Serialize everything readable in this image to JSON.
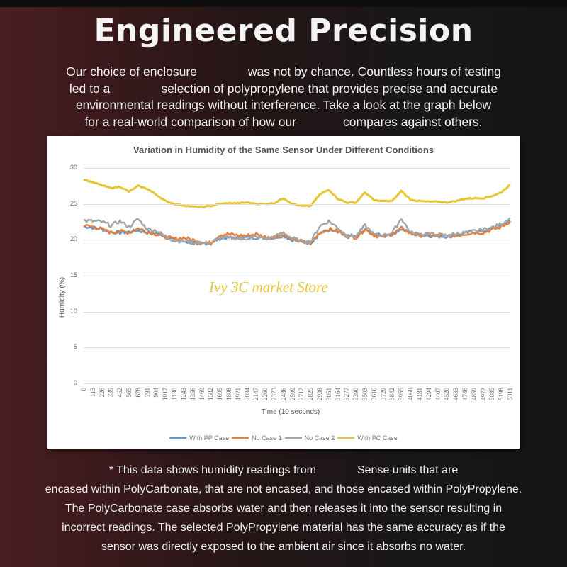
{
  "header": {
    "title": "Engineered Precision",
    "intro_lines": [
      [
        "Our choice of enclosure",
        "was not by chance. Countless hours of testing"
      ],
      [
        "led to a",
        "selection of polypropylene that provides precise and accurate"
      ],
      [
        "environmental readings without interference. Take a look at the graph below"
      ],
      [
        "for a real-world comparison of how our",
        "compares against others."
      ]
    ]
  },
  "watermark": "Ivy 3C market Store",
  "footnote": {
    "line1_a": "* This data shows humidity readings from",
    "line1_b": "Sense units that are",
    "line2": "encased within PolyCarbonate, that are not encased, and those encased within PolyPropylene.",
    "line3": "The PolyCarbonate case absorbs water and then releases it into the sensor resulting in",
    "line4": "incorrect readings. The selected PolyPropylene material has the same accuracy as if the",
    "line5": "sensor was directly exposed to the ambient air since it absorbs no water."
  },
  "chart_data": {
    "type": "line",
    "title": "Variation in Humidity of the Same Sensor Under Different Conditions",
    "xlabel": "Time (10 seconds)",
    "ylabel": "Humidity (%)",
    "ylim": [
      0,
      30
    ],
    "yticks": [
      "0",
      "5",
      "10",
      "15",
      "20",
      "25",
      "30"
    ],
    "grid": true,
    "legend_position": "bottom",
    "x": [
      0,
      113,
      226,
      339,
      452,
      565,
      678,
      791,
      904,
      1017,
      1130,
      1243,
      1356,
      1469,
      1582,
      1695,
      1808,
      1921,
      2034,
      2147,
      2260,
      2373,
      2486,
      2599,
      2712,
      2825,
      2938,
      3051,
      3164,
      3277,
      3390,
      3503,
      3616,
      3729,
      3842,
      3955,
      4068,
      4181,
      4294,
      4407,
      4520,
      4633,
      4746,
      4859,
      4972,
      5085,
      5198,
      5311
    ],
    "series": [
      {
        "name": "With PP Case",
        "color": "#5b9bd5",
        "values": [
          21.9,
          21.7,
          21.5,
          21.1,
          21.0,
          21.1,
          21.3,
          21.0,
          20.9,
          20.5,
          20.0,
          19.8,
          19.6,
          19.5,
          19.6,
          20.2,
          20.3,
          20.2,
          20.3,
          20.3,
          20.2,
          20.3,
          20.6,
          20.0,
          19.7,
          19.6,
          20.9,
          21.3,
          21.0,
          20.5,
          20.4,
          21.4,
          20.7,
          20.6,
          20.8,
          21.5,
          20.9,
          20.7,
          20.6,
          20.5,
          20.5,
          20.6,
          20.9,
          21.1,
          21.2,
          21.5,
          21.9,
          22.7
        ]
      },
      {
        "name": "No Case 1",
        "color": "#ed7d31",
        "values": [
          22.0,
          21.8,
          21.5,
          21.0,
          21.2,
          21.0,
          21.6,
          21.1,
          20.8,
          20.4,
          20.1,
          20.3,
          20.0,
          19.7,
          19.5,
          20.7,
          20.8,
          20.6,
          20.6,
          20.8,
          20.4,
          20.4,
          20.7,
          20.0,
          19.8,
          19.5,
          21.0,
          21.5,
          21.2,
          20.5,
          20.3,
          21.5,
          20.6,
          20.4,
          20.8,
          21.6,
          20.9,
          20.6,
          20.7,
          20.5,
          20.5,
          20.6,
          20.8,
          21.0,
          21.0,
          21.4,
          21.8,
          22.6
        ]
      },
      {
        "name": "No Case 2",
        "color": "#a5a5a5",
        "values": [
          22.7,
          22.6,
          22.5,
          22.0,
          22.6,
          21.8,
          22.9,
          21.5,
          21.3,
          20.5,
          19.9,
          19.8,
          19.6,
          19.5,
          19.6,
          20.3,
          20.3,
          20.2,
          20.2,
          20.4,
          20.2,
          20.4,
          21.0,
          20.2,
          19.8,
          19.7,
          21.9,
          22.6,
          21.7,
          20.6,
          20.5,
          22.0,
          20.7,
          20.6,
          21.0,
          23.0,
          21.0,
          20.8,
          20.8,
          20.7,
          20.6,
          20.8,
          21.0,
          21.2,
          21.4,
          21.7,
          22.2,
          23.1
        ]
      },
      {
        "name": "With PC Case",
        "color": "#e8c530",
        "values": [
          28.4,
          28.0,
          27.6,
          27.2,
          27.4,
          26.7,
          27.5,
          27.1,
          26.3,
          25.4,
          25.0,
          24.8,
          24.6,
          24.6,
          24.7,
          25.0,
          25.1,
          25.1,
          25.2,
          25.0,
          25.0,
          25.1,
          25.8,
          25.0,
          24.7,
          24.7,
          26.3,
          27.0,
          25.7,
          25.2,
          25.2,
          26.6,
          25.5,
          25.4,
          25.4,
          26.8,
          25.6,
          25.4,
          25.3,
          25.3,
          25.2,
          25.4,
          25.7,
          25.8,
          25.8,
          26.1,
          26.6,
          27.7
        ]
      }
    ]
  }
}
